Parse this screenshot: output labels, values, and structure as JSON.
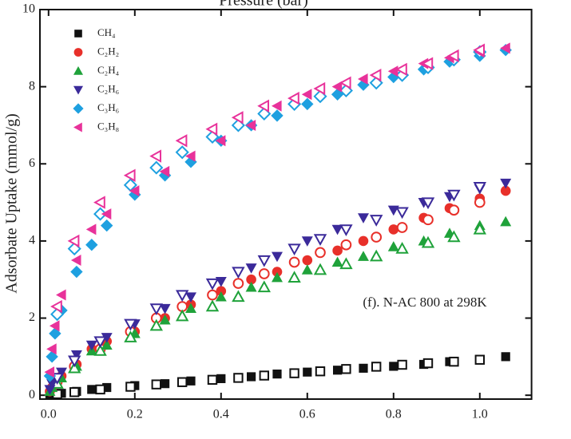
{
  "chart_data": {
    "type": "scatter",
    "title": "Pressure (bar)",
    "y_label": "Adsorbate Uptake (mmol/g)",
    "annotation": "(f). N-AC 800 at 298K",
    "x": [
      0.003,
      0.008,
      0.015,
      0.03,
      0.065,
      0.1,
      0.135,
      0.2,
      0.27,
      0.33,
      0.4,
      0.47,
      0.53,
      0.6,
      0.67,
      0.73,
      0.8,
      0.87,
      0.93,
      1.0,
      1.06
    ],
    "desorption_x": [
      1.0,
      0.94,
      0.88,
      0.82,
      0.76,
      0.69,
      0.63,
      0.57,
      0.5,
      0.44,
      0.38,
      0.31,
      0.25,
      0.19,
      0.12,
      0.06,
      0.02
    ],
    "series": [
      {
        "name": "CH₄",
        "color": "#111111",
        "marker": "square",
        "values": [
          0.01,
          0.02,
          0.03,
          0.05,
          0.1,
          0.15,
          0.2,
          0.25,
          0.3,
          0.37,
          0.43,
          0.48,
          0.55,
          0.6,
          0.65,
          0.7,
          0.75,
          0.8,
          0.87,
          0.93,
          1.0
        ],
        "desorption_values": [
          0.92,
          0.87,
          0.83,
          0.79,
          0.74,
          0.68,
          0.62,
          0.57,
          0.51,
          0.45,
          0.4,
          0.34,
          0.28,
          0.22,
          0.15,
          0.08,
          0.03
        ]
      },
      {
        "name": "C₂H₂",
        "color": "#e8302a",
        "marker": "circle",
        "values": [
          0.1,
          0.2,
          0.35,
          0.5,
          0.8,
          1.2,
          1.4,
          1.65,
          2.0,
          2.35,
          2.7,
          3.0,
          3.2,
          3.5,
          3.75,
          4.0,
          4.3,
          4.6,
          4.85,
          5.1,
          5.3
        ],
        "desorption_values": [
          5.0,
          4.8,
          4.55,
          4.35,
          4.1,
          3.9,
          3.7,
          3.45,
          3.15,
          2.9,
          2.6,
          2.3,
          2.0,
          1.65,
          1.2,
          0.75,
          0.35
        ]
      },
      {
        "name": "C₂H₄",
        "color": "#1fa23a",
        "marker": "triangle-up",
        "values": [
          0.1,
          0.2,
          0.3,
          0.45,
          0.75,
          1.15,
          1.3,
          1.6,
          1.95,
          2.25,
          2.55,
          2.8,
          3.05,
          3.25,
          3.45,
          3.6,
          3.85,
          4.0,
          4.2,
          4.4,
          4.5
        ],
        "desorption_values": [
          4.3,
          4.1,
          3.95,
          3.8,
          3.6,
          3.4,
          3.25,
          3.05,
          2.8,
          2.55,
          2.3,
          2.05,
          1.8,
          1.5,
          1.15,
          0.7,
          0.3
        ]
      },
      {
        "name": "C₂H₆",
        "color": "#3b2a9a",
        "marker": "triangle-down",
        "values": [
          0.15,
          0.3,
          0.45,
          0.6,
          1.05,
          1.3,
          1.5,
          1.85,
          2.25,
          2.55,
          2.95,
          3.3,
          3.6,
          4.0,
          4.3,
          4.6,
          4.8,
          5.0,
          5.15,
          5.35,
          5.5
        ],
        "desorption_values": [
          5.4,
          5.2,
          5.0,
          4.75,
          4.55,
          4.3,
          4.05,
          3.8,
          3.5,
          3.2,
          2.9,
          2.6,
          2.25,
          1.85,
          1.4,
          0.9,
          0.45
        ]
      },
      {
        "name": "C₃H₆",
        "color": "#1ea0e0",
        "marker": "diamond",
        "values": [
          0.5,
          1.0,
          1.6,
          2.2,
          3.2,
          3.9,
          4.4,
          5.2,
          5.7,
          6.05,
          6.6,
          7.0,
          7.25,
          7.55,
          7.8,
          8.05,
          8.25,
          8.45,
          8.65,
          8.8,
          8.95
        ],
        "desorption_values": [
          8.9,
          8.7,
          8.5,
          8.3,
          8.1,
          7.9,
          7.75,
          7.55,
          7.3,
          7.0,
          6.7,
          6.3,
          5.9,
          5.45,
          4.7,
          3.8,
          2.1
        ]
      },
      {
        "name": "C₃H₈",
        "color": "#e8329a",
        "marker": "triangle-left",
        "values": [
          0.6,
          1.2,
          1.8,
          2.6,
          3.5,
          4.3,
          4.7,
          5.3,
          5.8,
          6.2,
          6.6,
          7.0,
          7.5,
          7.8,
          8.0,
          8.2,
          8.4,
          8.6,
          8.75,
          8.9,
          9.0
        ],
        "desorption_values": [
          8.95,
          8.8,
          8.6,
          8.45,
          8.3,
          8.1,
          7.95,
          7.7,
          7.5,
          7.2,
          6.9,
          6.6,
          6.2,
          5.7,
          5.0,
          4.0,
          2.3
        ]
      }
    ],
    "xlim": [
      -0.02,
      1.12
    ],
    "ylim": [
      -0.1,
      10
    ],
    "xticks": [
      {
        "value": 0,
        "label": "0.0"
      },
      0.2,
      0.4,
      0.6,
      0.8,
      {
        "value": 1,
        "label": "1.0"
      }
    ],
    "yticks": [
      0,
      2,
      4,
      6,
      8,
      10
    ]
  }
}
